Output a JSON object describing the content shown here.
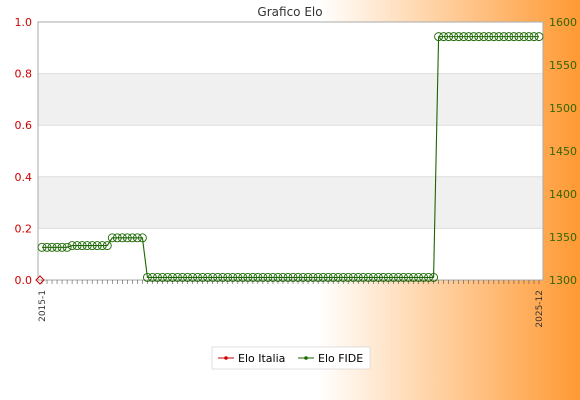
{
  "chart_data": {
    "type": "line",
    "title": "Grafico Elo",
    "grid": true,
    "legend_position": "bottom-center",
    "colors": {
      "italia": "#cc0000",
      "fide": "#1a6600",
      "background_left": "#ffffff",
      "background_right": "#ff9933",
      "band": "#f0f0f0"
    },
    "y_left": {
      "min": 0.0,
      "max": 1.0,
      "ticks": [
        "0.0",
        "0.2",
        "0.4",
        "0.6",
        "0.8",
        "1.0"
      ]
    },
    "y_right": {
      "min": 1300,
      "max": 1600,
      "ticks": [
        "1300",
        "1350",
        "1400",
        "1450",
        "1500",
        "1550",
        "1600"
      ]
    },
    "x_first_label": "2015-1",
    "x_last_label": "2025-12",
    "series": [
      {
        "name": "Elo Italia",
        "axis": "left",
        "values": [
          0.0
        ]
      },
      {
        "name": "Elo FIDE",
        "axis": "right",
        "values": [
          1338,
          1338,
          1338,
          1338,
          1338,
          1338,
          1340,
          1340,
          1340,
          1340,
          1340,
          1340,
          1340,
          1340,
          1349,
          1349,
          1349,
          1349,
          1349,
          1349,
          1349,
          1303,
          1303,
          1303,
          1303,
          1303,
          1303,
          1303,
          1303,
          1303,
          1303,
          1303,
          1303,
          1303,
          1303,
          1303,
          1303,
          1303,
          1303,
          1303,
          1303,
          1303,
          1303,
          1303,
          1303,
          1303,
          1303,
          1303,
          1303,
          1303,
          1303,
          1303,
          1303,
          1303,
          1303,
          1303,
          1303,
          1303,
          1303,
          1303,
          1303,
          1303,
          1303,
          1303,
          1303,
          1303,
          1303,
          1303,
          1303,
          1303,
          1303,
          1303,
          1303,
          1303,
          1303,
          1303,
          1303,
          1303,
          1303,
          1583,
          1583,
          1583,
          1583,
          1583,
          1583,
          1583,
          1583,
          1583,
          1583,
          1583,
          1583,
          1583,
          1583,
          1583,
          1583,
          1583,
          1583,
          1583,
          1583,
          1583
        ]
      }
    ]
  }
}
